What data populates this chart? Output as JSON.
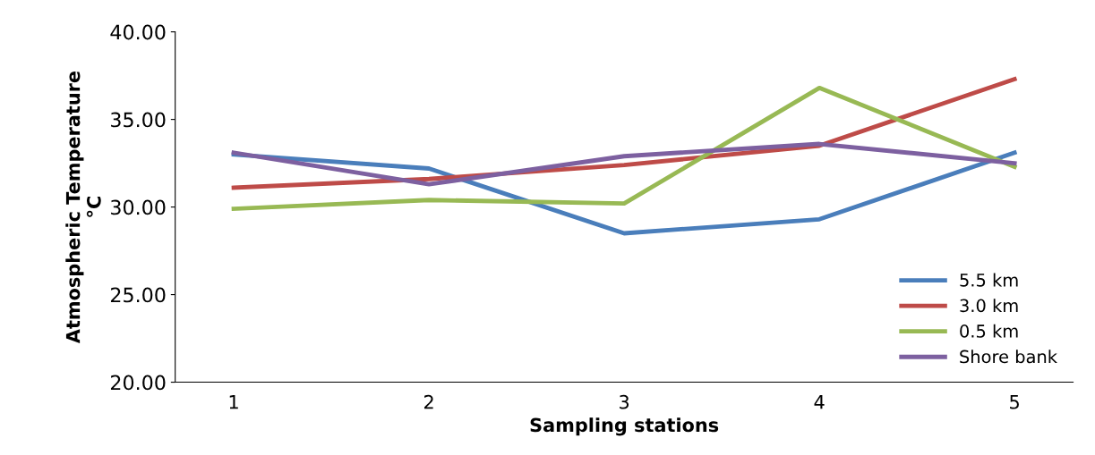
{
  "chart_data": {
    "type": "line",
    "xlabel": "Sampling stations",
    "ylabel": "Atmospheric Temperature\n°C",
    "categories": [
      "1",
      "2",
      "3",
      "4",
      "5"
    ],
    "series": [
      {
        "name": "5.5 km",
        "color": "#4a7ebb",
        "values": [
          33.0,
          32.2,
          28.5,
          29.3,
          33.1
        ]
      },
      {
        "name": "3.0 km",
        "color": "#be4b48",
        "values": [
          31.1,
          31.6,
          32.4,
          33.5,
          37.3
        ]
      },
      {
        "name": "0.5 km",
        "color": "#98b954",
        "values": [
          29.9,
          30.4,
          30.2,
          36.8,
          32.3
        ]
      },
      {
        "name": "Shore bank",
        "color": "#7d60a0",
        "values": [
          33.1,
          31.3,
          32.9,
          33.6,
          32.5
        ]
      }
    ],
    "ylim": [
      20,
      40
    ],
    "yticks": [
      {
        "value": 20,
        "label": "20.00"
      },
      {
        "value": 25,
        "label": "25.00"
      },
      {
        "value": 30,
        "label": "30.00"
      },
      {
        "value": 35,
        "label": "35.00"
      },
      {
        "value": 40,
        "label": "40.00"
      }
    ],
    "grid": false,
    "legend": "right",
    "marker": "none",
    "line_style": "solid"
  }
}
